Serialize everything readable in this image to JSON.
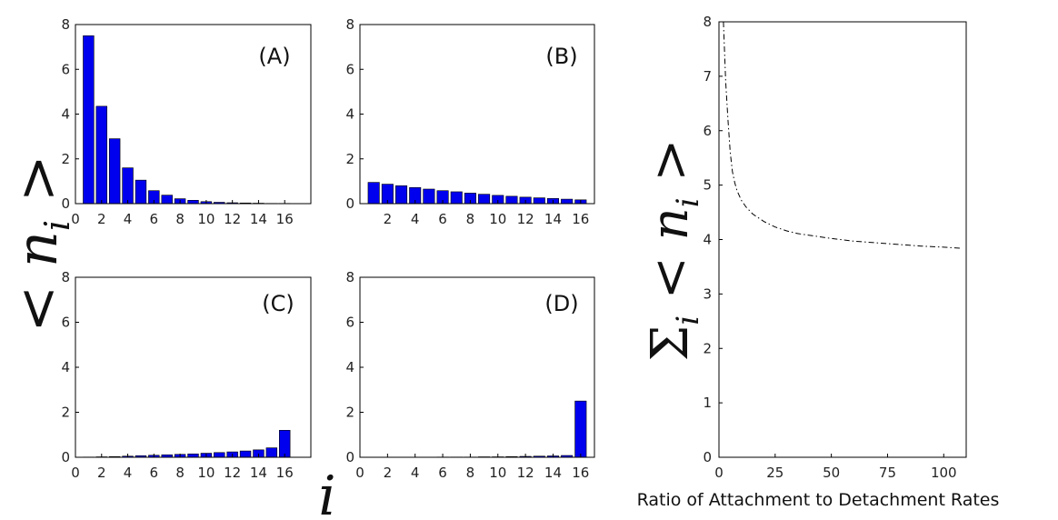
{
  "chart_data": [
    {
      "type": "bar",
      "panel_label": "(A)",
      "x": [
        1,
        2,
        3,
        4,
        5,
        6,
        7,
        8,
        9,
        10,
        11,
        12,
        13,
        14,
        15,
        16
      ],
      "values": [
        7.5,
        4.35,
        2.9,
        1.6,
        1.05,
        0.58,
        0.38,
        0.22,
        0.15,
        0.09,
        0.06,
        0.04,
        0.03,
        0.02,
        0.01,
        0.01
      ],
      "xticks": [
        0,
        2,
        4,
        6,
        8,
        10,
        12,
        14,
        16
      ],
      "yticks": [
        0,
        2,
        4,
        6,
        8
      ],
      "xlim": [
        0,
        18
      ],
      "ylim": [
        0,
        8
      ],
      "bar_color": "#0000ee"
    },
    {
      "type": "bar",
      "panel_label": "(B)",
      "x": [
        1,
        2,
        3,
        4,
        5,
        6,
        7,
        8,
        9,
        10,
        11,
        12,
        13,
        14,
        15,
        16
      ],
      "values": [
        0.95,
        0.87,
        0.8,
        0.72,
        0.65,
        0.58,
        0.53,
        0.47,
        0.42,
        0.37,
        0.33,
        0.29,
        0.26,
        0.23,
        0.2,
        0.17
      ],
      "xticks": [
        2,
        4,
        6,
        8,
        10,
        12,
        14,
        16
      ],
      "yticks": [
        0,
        2,
        4,
        6,
        8
      ],
      "xlim": [
        0,
        17
      ],
      "ylim": [
        0,
        8
      ],
      "bar_color": "#0000ee"
    },
    {
      "type": "bar",
      "panel_label": "(C)",
      "x": [
        1,
        2,
        3,
        4,
        5,
        6,
        7,
        8,
        9,
        10,
        11,
        12,
        13,
        14,
        15,
        16
      ],
      "values": [
        0.01,
        0.02,
        0.03,
        0.05,
        0.07,
        0.09,
        0.11,
        0.13,
        0.15,
        0.18,
        0.21,
        0.24,
        0.28,
        0.33,
        0.42,
        1.2
      ],
      "xticks": [
        0,
        2,
        4,
        6,
        8,
        10,
        12,
        14,
        16
      ],
      "yticks": [
        0,
        2,
        4,
        6,
        8
      ],
      "xlim": [
        0,
        18
      ],
      "ylim": [
        0,
        8
      ],
      "bar_color": "#0000ee"
    },
    {
      "type": "bar",
      "panel_label": "(D)",
      "x": [
        1,
        2,
        3,
        4,
        5,
        6,
        7,
        8,
        9,
        10,
        11,
        12,
        13,
        14,
        15,
        16
      ],
      "values": [
        0,
        0,
        0,
        0,
        0,
        0.01,
        0.01,
        0.01,
        0.02,
        0.02,
        0.03,
        0.04,
        0.05,
        0.06,
        0.08,
        2.5
      ],
      "xticks": [
        0,
        2,
        4,
        6,
        8,
        10,
        12,
        14,
        16
      ],
      "yticks": [
        0,
        2,
        4,
        6,
        8
      ],
      "xlim": [
        0,
        17
      ],
      "ylim": [
        0,
        8
      ],
      "bar_color": "#0000ee"
    },
    {
      "type": "line",
      "xlabel": "Ratio of Attachment to Detachment Rates",
      "line_style": "dash-dot",
      "x": [
        2,
        3,
        4,
        5,
        6,
        7,
        8,
        10,
        12,
        15,
        20,
        25,
        30,
        35,
        40,
        50,
        60,
        70,
        80,
        90,
        100,
        108
      ],
      "values": [
        8,
        6.9,
        6.2,
        5.6,
        5.25,
        5.05,
        4.9,
        4.72,
        4.6,
        4.47,
        4.33,
        4.23,
        4.16,
        4.11,
        4.08,
        4.02,
        3.97,
        3.94,
        3.91,
        3.88,
        3.86,
        3.84
      ],
      "xticks": [
        0,
        25,
        50,
        75,
        100
      ],
      "yticks": [
        0,
        1,
        2,
        3,
        4,
        5,
        6,
        7,
        8
      ],
      "xlim": [
        0,
        110
      ],
      "ylim": [
        0,
        8
      ]
    }
  ],
  "labels": {
    "bars_ylabel": "< n_i >",
    "bars_xlabel": "i",
    "line_ylabel": "Σ_i < n_i >"
  }
}
